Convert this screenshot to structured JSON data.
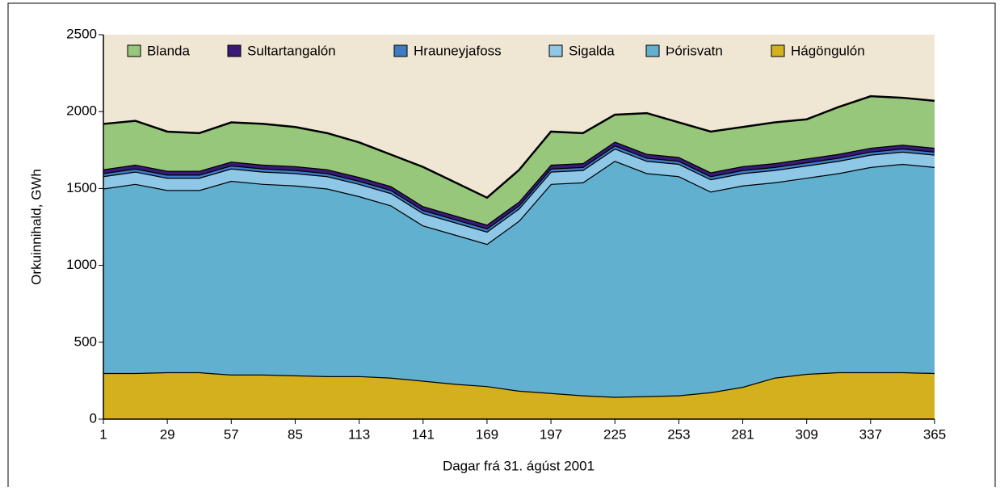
{
  "chart_data": {
    "type": "stacked_area",
    "x_label": "Dagar frá 31. ágúst 2001",
    "y_label": "Orkuinnihald, GWh",
    "x": [
      1,
      15,
      29,
      43,
      57,
      71,
      85,
      99,
      113,
      127,
      141,
      155,
      169,
      183,
      197,
      211,
      225,
      239,
      253,
      267,
      281,
      295,
      309,
      323,
      337,
      351,
      365
    ],
    "xlim": [
      1,
      365
    ],
    "xticks": [
      1,
      29,
      57,
      85,
      113,
      141,
      169,
      197,
      225,
      253,
      281,
      309,
      337,
      365
    ],
    "ylim": [
      0,
      2500
    ],
    "yticks": [
      0,
      500,
      1000,
      1500,
      2000,
      2500
    ],
    "series": [
      {
        "name": "Hágöngulón",
        "color": "#d4af1e",
        "values": [
          300,
          300,
          305,
          305,
          290,
          290,
          285,
          280,
          280,
          270,
          250,
          230,
          215,
          185,
          170,
          155,
          145,
          150,
          155,
          175,
          210,
          270,
          295,
          305,
          305,
          305,
          300
        ]
      },
      {
        "name": "Þórisvatn",
        "color": "#62b0cf",
        "values": [
          1200,
          1230,
          1185,
          1185,
          1260,
          1240,
          1235,
          1220,
          1170,
          1120,
          1010,
          970,
          925,
          1105,
          1360,
          1385,
          1535,
          1450,
          1425,
          1305,
          1310,
          1270,
          1275,
          1295,
          1335,
          1355,
          1340
        ]
      },
      {
        "name": "Sigalda",
        "color": "#8fc8e6",
        "values": [
          80,
          80,
          80,
          80,
          80,
          80,
          80,
          80,
          80,
          80,
          80,
          80,
          80,
          80,
          80,
          80,
          80,
          80,
          80,
          80,
          80,
          80,
          80,
          80,
          80,
          80,
          80
        ]
      },
      {
        "name": "Hrauneyjafoss",
        "color": "#3d7cc4",
        "values": [
          20,
          20,
          20,
          20,
          20,
          20,
          20,
          20,
          20,
          20,
          20,
          20,
          20,
          20,
          20,
          20,
          20,
          20,
          20,
          20,
          20,
          20,
          20,
          20,
          20,
          20,
          20
        ]
      },
      {
        "name": "Sultartangalón",
        "color": "#3a1a78",
        "values": [
          25,
          25,
          25,
          25,
          25,
          25,
          25,
          25,
          25,
          25,
          25,
          25,
          25,
          25,
          25,
          25,
          25,
          25,
          25,
          25,
          25,
          25,
          25,
          25,
          25,
          25,
          25
        ]
      },
      {
        "name": "Blanda",
        "color": "#97c77a",
        "values": [
          295,
          285,
          255,
          245,
          255,
          265,
          255,
          235,
          225,
          205,
          255,
          215,
          175,
          205,
          215,
          195,
          175,
          265,
          225,
          265,
          255,
          265,
          255,
          305,
          335,
          305,
          305
        ]
      }
    ],
    "legend_order": [
      5,
      4,
      3,
      2,
      1,
      0
    ]
  }
}
